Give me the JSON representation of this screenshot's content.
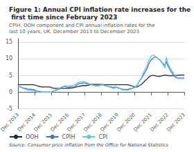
{
  "chart_data": {
    "type": "line",
    "title": "Figure 1: Annual CPI inflation rate increases for the first time since February 2023",
    "subtitle": "CPIH, OOH component and CPI annual inflation rates for the last 10 years, UK, December 2013 to December 2023",
    "annotations": [
      "Source: Consumer price inflation from the Office for National Statistics"
    ],
    "categories": [
      "Dec 2013",
      null,
      null,
      null,
      null,
      null,
      null,
      null,
      null,
      null,
      null,
      null,
      "Dec 2014",
      null,
      null,
      null,
      null,
      null,
      null,
      null,
      null,
      null,
      null,
      null,
      "Dec 2015",
      null,
      null,
      null,
      null,
      null,
      null,
      null,
      null,
      null,
      null,
      null,
      "Dec 2016",
      null,
      null,
      null,
      null,
      null,
      null,
      null,
      null,
      null,
      null,
      null,
      "Dec 2017",
      null,
      null,
      null,
      null,
      null,
      null,
      null,
      null,
      null,
      null,
      null,
      "Dec 2018",
      null,
      null,
      null,
      null,
      null,
      null,
      null,
      null,
      null,
      null,
      null,
      "Dec 2019",
      null,
      null,
      null,
      null,
      null,
      null,
      null,
      null,
      null,
      null,
      null,
      "Dec 2020",
      null,
      null,
      null,
      null,
      null,
      null,
      null,
      null,
      null,
      null,
      null,
      "Dec 2021",
      null,
      null,
      null,
      null,
      null,
      null,
      null,
      null,
      null,
      null,
      null,
      "Dec 2022",
      null,
      null,
      null,
      null,
      null,
      null,
      null,
      null,
      null,
      null,
      null,
      "Dec 2023"
    ],
    "series": [
      {
        "name": "OOH",
        "color": "#1c2b3a",
        "values": [
          2.2,
          2.2,
          2.2,
          2.2,
          2.2,
          2.2,
          2.2,
          2.2,
          2.2,
          2.2,
          2.2,
          2.2,
          2.1,
          2.0,
          1.8,
          1.7,
          1.6,
          1.5,
          1.5,
          1.5,
          1.5,
          1.5,
          1.5,
          1.5,
          1.3,
          1.2,
          1.1,
          1.1,
          1.1,
          1.1,
          1.1,
          1.1,
          1.1,
          1.1,
          1.1,
          1.1,
          1.1,
          1.1,
          1.2,
          1.2,
          1.3,
          1.4,
          1.5,
          1.6,
          1.7,
          1.8,
          1.9,
          1.9,
          1.9,
          1.9,
          2.0,
          2.1,
          2.2,
          2.3,
          2.3,
          2.3,
          2.3,
          2.3,
          2.3,
          2.3,
          2.3,
          2.3,
          2.2,
          2.2,
          2.2,
          2.2,
          2.2,
          2.2,
          2.2,
          2.2,
          2.2,
          2.2,
          2.2,
          2.2,
          2.2,
          2.2,
          2.2,
          2.2,
          2.2,
          2.2,
          2.1,
          2.0,
          1.9,
          1.7,
          1.5,
          1.5,
          1.5,
          1.8,
          2.0,
          2.3,
          2.7,
          3.1,
          3.5,
          3.9,
          4.3,
          4.7,
          4.9,
          5.0,
          5.0,
          4.9,
          4.8,
          4.7,
          4.7,
          4.8,
          4.9,
          5.0,
          5.1,
          5.0,
          5.0,
          4.9,
          4.9,
          4.9,
          4.9,
          5.0,
          5.0,
          5.0,
          5.1,
          5.1,
          5.1,
          5.1,
          5.1
        ]
      },
      {
        "name": "CPIH",
        "color": "#4472c4",
        "values": [
          1.7,
          1.6,
          1.5,
          1.3,
          1.2,
          1.1,
          1.0,
          0.9,
          0.8,
          0.9,
          0.7,
          0.8,
          0.6,
          0.4,
          0.2,
          0.2,
          0.1,
          0.0,
          0.0,
          0.0,
          0.0,
          0.0,
          0.0,
          0.0,
          0.0,
          0.2,
          0.4,
          0.5,
          0.6,
          0.8,
          1.0,
          1.2,
          1.5,
          1.6,
          1.7,
          1.5,
          1.4,
          1.4,
          1.5,
          1.5,
          1.5,
          1.5,
          2.0,
          2.3,
          2.5,
          2.6,
          2.6,
          2.7,
          2.7,
          2.6,
          2.4,
          2.3,
          2.3,
          2.2,
          2.1,
          2.0,
          1.9,
          1.9,
          1.9,
          2.0,
          2.1,
          2.2,
          2.0,
          1.9,
          1.8,
          1.7,
          1.6,
          1.5,
          1.4,
          1.3,
          1.5,
          1.4,
          1.3,
          1.2,
          1.0,
          0.9,
          0.8,
          0.8,
          0.8,
          0.8,
          0.9,
          1.0,
          1.1,
          1.2,
          1.4,
          1.7,
          2.1,
          2.9,
          3.5,
          4.0,
          4.8,
          5.5,
          6.2,
          7.0,
          8.0,
          9.0,
          9.6,
          10.0,
          10.3,
          10.5,
          10.4,
          10.1,
          9.8,
          9.3,
          8.8,
          8.4,
          7.9,
          9.2,
          8.0,
          7.2,
          6.4,
          5.8,
          5.1,
          4.7,
          4.3,
          4.2,
          4.2,
          4.2,
          4.2,
          4.2,
          4.2
        ]
      },
      {
        "name": "CPI",
        "color": "#5bc8e0",
        "values": [
          1.6,
          1.5,
          1.4,
          1.2,
          1.0,
          0.9,
          0.7,
          0.6,
          0.5,
          0.6,
          0.4,
          0.5,
          0.3,
          0.1,
          -0.1,
          -0.1,
          -0.1,
          -0.1,
          -0.1,
          -0.1,
          -0.1,
          -0.1,
          -0.1,
          -0.1,
          0.0,
          0.2,
          0.4,
          0.6,
          0.8,
          1.0,
          1.2,
          1.4,
          1.6,
          1.7,
          1.9,
          1.8,
          1.7,
          1.8,
          1.9,
          2.0,
          2.0,
          2.1,
          2.5,
          2.8,
          2.9,
          3.0,
          3.0,
          3.1,
          3.1,
          2.9,
          2.7,
          2.5,
          2.4,
          2.3,
          2.1,
          2.0,
          1.9,
          1.9,
          2.0,
          2.1,
          2.2,
          2.3,
          2.0,
          1.9,
          1.8,
          1.7,
          1.5,
          1.3,
          1.2,
          1.0,
          1.3,
          1.3,
          1.2,
          1.1,
          0.9,
          0.7,
          0.6,
          0.6,
          0.6,
          0.5,
          0.7,
          0.8,
          1.0,
          1.1,
          1.3,
          1.6,
          2.0,
          2.9,
          3.6,
          4.2,
          5.4,
          6.2,
          7.0,
          7.9,
          9.0,
          10.1,
          10.7,
          11.1,
          11.0,
          10.7,
          10.5,
          10.1,
          9.7,
          9.2,
          8.7,
          8.0,
          7.2,
          10.5,
          8.7,
          7.9,
          7.1,
          6.4,
          5.7,
          5.2,
          4.7,
          4.3,
          4.0,
          4.0,
          4.0,
          4.0,
          4.0
        ]
      }
    ],
    "ylim": [
      -5,
      16
    ],
    "yticks": [
      -5,
      0,
      5,
      10,
      15
    ],
    "grid": true,
    "legend": "lower left"
  }
}
